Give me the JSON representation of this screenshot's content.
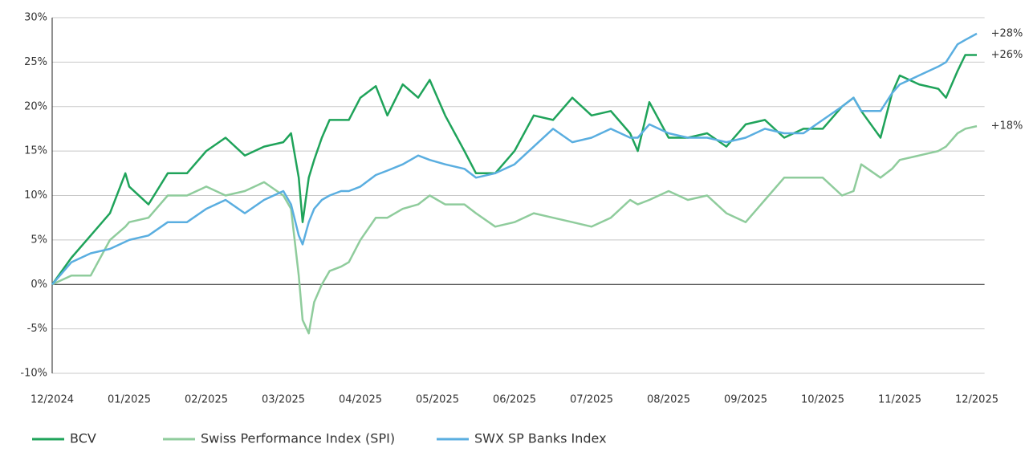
{
  "chart_data": {
    "type": "line",
    "x": [
      0,
      0.25,
      0.5,
      0.75,
      0.95,
      1,
      1.25,
      1.5,
      1.75,
      2,
      2.25,
      2.5,
      2.75,
      3,
      3.1,
      3.2,
      3.25,
      3.33,
      3.4,
      3.5,
      3.6,
      3.75,
      3.85,
      4,
      4.2,
      4.35,
      4.55,
      4.75,
      4.9,
      5.1,
      5.35,
      5.5,
      5.75,
      6,
      6.25,
      6.5,
      6.75,
      7,
      7.25,
      7.5,
      7.6,
      7.75,
      8,
      8.25,
      8.5,
      8.75,
      9,
      9.25,
      9.5,
      9.75,
      10,
      10.25,
      10.4,
      10.5,
      10.75,
      10.9,
      11,
      11.25,
      11.5,
      11.6,
      11.75,
      11.85,
      12
    ],
    "series": [
      {
        "name": "BCV",
        "color": "#1fa35a",
        "end_label": "+26%",
        "values": [
          0,
          3,
          5.5,
          8,
          12.5,
          11,
          9,
          12.5,
          12.5,
          15,
          16.5,
          14.5,
          15.5,
          16,
          17,
          12,
          7,
          12,
          14,
          16.5,
          18.5,
          18.5,
          18.5,
          21,
          22.3,
          19,
          22.5,
          21,
          23,
          19,
          15,
          12.5,
          12.5,
          15,
          19,
          18.5,
          21,
          19,
          19.5,
          17,
          15,
          20.5,
          16.5,
          16.5,
          17,
          15.5,
          18,
          18.5,
          16.5,
          17.5,
          17.5,
          20,
          21,
          19.5,
          16.5,
          21.5,
          23.5,
          22.5,
          22,
          21,
          24,
          25.8,
          25.8
        ]
      },
      {
        "name": "Swiss Performance Index (SPI)",
        "color": "#8fcc9c",
        "end_label": "+18%",
        "values": [
          0,
          1,
          1,
          5,
          6.5,
          7,
          7.5,
          10,
          10,
          11,
          10,
          10.5,
          11.5,
          10,
          8.5,
          1,
          -4,
          -5.5,
          -2,
          0,
          1.5,
          2,
          2.5,
          5,
          7.5,
          7.5,
          8.5,
          9,
          10,
          9,
          9,
          8,
          6.5,
          7,
          8,
          7.5,
          7,
          6.5,
          7.5,
          9.5,
          9,
          9.5,
          10.5,
          9.5,
          10,
          8,
          7,
          9.5,
          12,
          12,
          12,
          10,
          10.5,
          13.5,
          12,
          13,
          14,
          14.5,
          15,
          15.5,
          17,
          17.5,
          17.8
        ]
      },
      {
        "name": "SWX SP Banks Index",
        "color": "#5aaee0",
        "end_label": "+28%",
        "values": [
          0,
          2.5,
          3.5,
          4,
          4.8,
          5,
          5.5,
          7,
          7,
          8.5,
          9.5,
          8,
          9.5,
          10.5,
          9,
          5.5,
          4.5,
          7,
          8.5,
          9.5,
          10,
          10.5,
          10.5,
          11,
          12.3,
          12.8,
          13.5,
          14.5,
          14,
          13.5,
          13,
          12,
          12.5,
          13.5,
          15.5,
          17.5,
          16,
          16.5,
          17.5,
          16.5,
          16.5,
          18,
          17,
          16.5,
          16.5,
          16,
          16.5,
          17.5,
          17,
          17,
          18.5,
          20,
          21,
          19.5,
          19.5,
          21.5,
          22.5,
          23.5,
          24.5,
          25,
          27,
          27.5,
          28.2
        ]
      }
    ],
    "xlim": [
      0,
      12.1
    ],
    "xticks": [
      {
        "value": 0,
        "label": "12/2024"
      },
      {
        "value": 1,
        "label": "01/2025"
      },
      {
        "value": 2,
        "label": "02/2025"
      },
      {
        "value": 3,
        "label": "03/2025"
      },
      {
        "value": 4,
        "label": "04/2025"
      },
      {
        "value": 5,
        "label": "05/2025"
      },
      {
        "value": 6,
        "label": "06/2025"
      },
      {
        "value": 7,
        "label": "07/2025"
      },
      {
        "value": 8,
        "label": "08/2025"
      },
      {
        "value": 9,
        "label": "09/2025"
      },
      {
        "value": 10,
        "label": "10/2025"
      },
      {
        "value": 11,
        "label": "11/2025"
      },
      {
        "value": 12,
        "label": "12/2025"
      }
    ],
    "ylim": [
      -10,
      30
    ],
    "yticks": [
      {
        "value": -10,
        "label": "-10%"
      },
      {
        "value": -5,
        "label": "-5%"
      },
      {
        "value": 0,
        "label": "0%"
      },
      {
        "value": 5,
        "label": "5%"
      },
      {
        "value": 10,
        "label": "10%"
      },
      {
        "value": 15,
        "label": "15%"
      },
      {
        "value": 20,
        "label": "20%"
      },
      {
        "value": 25,
        "label": "25%"
      },
      {
        "value": 30,
        "label": "30%"
      }
    ],
    "grid": true,
    "legend": "bottom"
  }
}
